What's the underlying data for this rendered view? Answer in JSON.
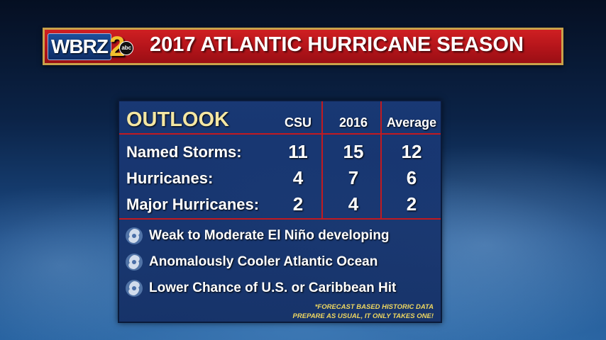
{
  "banner": {
    "logo_text": "WBRZ",
    "logo_number": "2",
    "logo_network": "abc",
    "title": "2017 ATLANTIC HURRICANE SEASON"
  },
  "outlook": {
    "heading": "OUTLOOK",
    "columns": [
      "CSU",
      "2016",
      "Average"
    ],
    "rows": [
      {
        "label": "Named Storms:",
        "values": [
          "11",
          "15",
          "12"
        ]
      },
      {
        "label": "Hurricanes:",
        "values": [
          "4",
          "7",
          "6"
        ]
      },
      {
        "label": "Major Hurricanes:",
        "values": [
          "2",
          "4",
          "2"
        ]
      }
    ],
    "bullets": [
      "Weak to Moderate El Niño developing",
      "Anomalously Cooler Atlantic Ocean",
      "Lower Chance of U.S. or Caribbean Hit"
    ],
    "bullet_icon": "hurricane-icon",
    "footnotes": [
      "*FORECAST BASED HISTORIC DATA",
      "PREPARE AS USUAL, IT ONLY TAKES ONE!"
    ]
  },
  "colors": {
    "banner_red": "#b3141a",
    "banner_border": "#c9a24a",
    "outlook_heading": "#f4e7a3",
    "grid_lines": "#c21a20",
    "footnote": "#f0d860",
    "panel_blue": "#1a3a78"
  }
}
